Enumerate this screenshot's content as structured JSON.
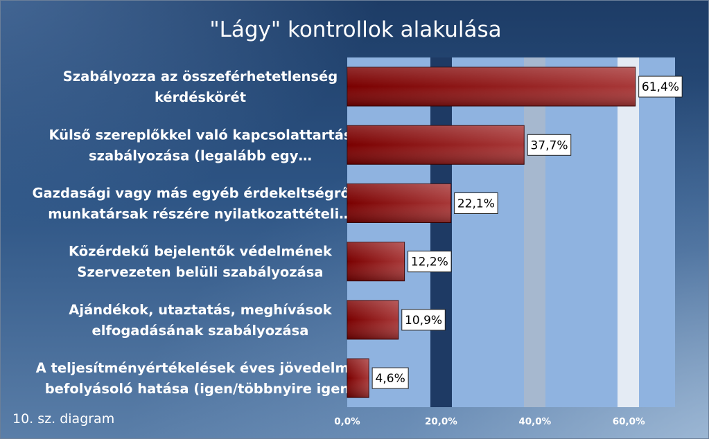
{
  "chart_data": {
    "type": "bar",
    "orientation": "horizontal",
    "title": "\"Lágy\" kontrollok alakulása",
    "categories": [
      [
        "Szabályozza az összeférhetetlenség",
        "kérdéskörét"
      ],
      [
        "Külső szereplőkkel való kapcsolattartás",
        "szabályozása (legalább egy…"
      ],
      [
        "Gazdasági vagy más egyéb érdekeltségről a",
        "munkatársak részére nyilatkozattételi…"
      ],
      [
        "Közérdekű bejelentők védelmének",
        "Szervezeten belüli szabályozása"
      ],
      [
        "Ajándékok, utaztatás, meghívások",
        "elfogadásának szabályozása"
      ],
      [
        "A teljesítményértékelések éves jövedelmet",
        "befolyásoló hatása (igen/többnyire igen)"
      ]
    ],
    "values": [
      61.4,
      37.7,
      22.1,
      12.2,
      10.9,
      4.6
    ],
    "data_labels": [
      "61,4%",
      "37,7%",
      "22,1%",
      "12,2%",
      "10,9%",
      "4,6%"
    ],
    "xlim": [
      0,
      70
    ],
    "x_ticks": [
      0,
      20,
      40,
      60
    ],
    "x_tick_labels": [
      "0,0%",
      "20,0%",
      "40,0%",
      "60,0%"
    ],
    "bar_color": "#8b1010",
    "plot_bg": "#8fb3e0",
    "grid": false,
    "legend": "none"
  },
  "footnote": "10. sz. diagram"
}
